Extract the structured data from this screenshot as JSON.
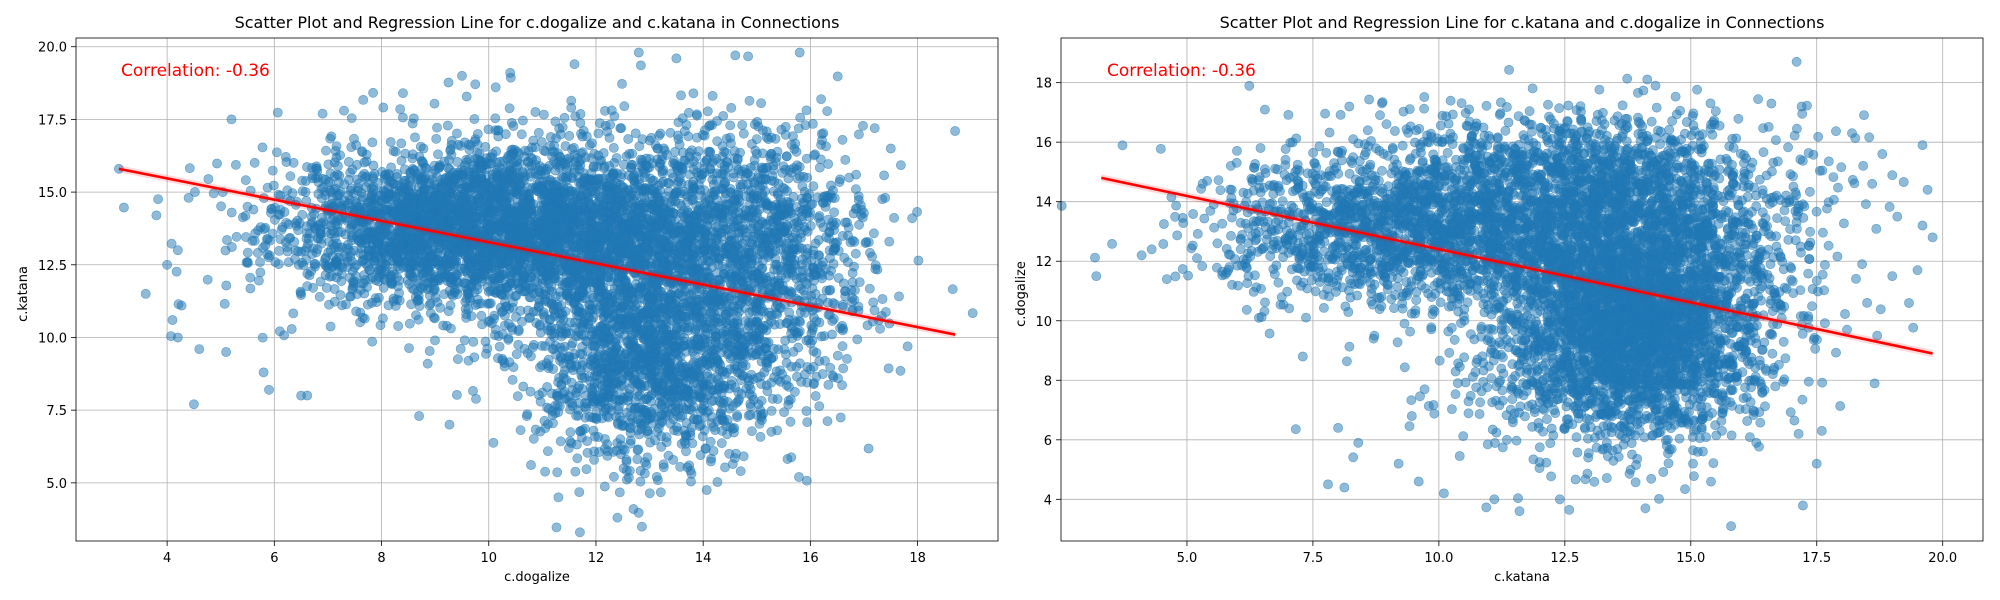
{
  "chart_data": [
    {
      "type": "scatter",
      "title": "Scatter Plot and Regression Line for c.dogalize and c.katana in Connections",
      "xlabel": "c.dogalize",
      "ylabel": "c.katana",
      "annotation": "Correlation: -0.36",
      "xlim": [
        2.3,
        19.5
      ],
      "ylim": [
        3.0,
        20.3
      ],
      "xticks": [
        4,
        6,
        8,
        10,
        12,
        14,
        16,
        18
      ],
      "xtick_labels": [
        "4",
        "6",
        "8",
        "10",
        "12",
        "14",
        "16",
        "18"
      ],
      "yticks": [
        5.0,
        7.5,
        10.0,
        12.5,
        15.0,
        17.5,
        20.0
      ],
      "ytick_labels": [
        "5.0",
        "7.5",
        "10.0",
        "12.5",
        "15.0",
        "17.5",
        "20.0"
      ],
      "grid": true,
      "regression": {
        "x": [
          3.1,
          18.7
        ],
        "y": [
          15.8,
          10.1
        ],
        "color": "#ff0000"
      },
      "point_color": "#1f77b4",
      "clusters": [
        {
          "cx": 9.5,
          "cy": 13.8,
          "sx": 1.7,
          "sy": 1.3,
          "n": 2600
        },
        {
          "cx": 12.8,
          "cy": 13.6,
          "sx": 1.6,
          "sy": 1.6,
          "n": 1800
        },
        {
          "cx": 13.0,
          "cy": 9.3,
          "sx": 1.2,
          "sy": 1.8,
          "n": 1600
        },
        {
          "cx": 15.3,
          "cy": 12.3,
          "sx": 0.9,
          "sy": 2.2,
          "n": 700
        },
        {
          "cx": 11.0,
          "cy": 13.5,
          "sx": 3.0,
          "sy": 2.2,
          "n": 350
        }
      ],
      "outliers": [
        [
          3.1,
          15.8
        ],
        [
          3.6,
          11.5
        ],
        [
          3.8,
          14.2
        ],
        [
          4.0,
          12.5
        ],
        [
          4.1,
          10.6
        ],
        [
          4.2,
          10.0
        ],
        [
          4.5,
          7.7
        ],
        [
          4.6,
          9.6
        ],
        [
          4.2,
          13.0
        ],
        [
          4.4,
          14.8
        ],
        [
          5.2,
          17.5
        ],
        [
          5.5,
          14.5
        ],
        [
          5.1,
          9.5
        ],
        [
          5.8,
          8.8
        ],
        [
          5.9,
          8.2
        ],
        [
          6.5,
          8.0
        ],
        [
          8.7,
          7.3
        ],
        [
          6.9,
          17.7
        ],
        [
          7.3,
          17.8
        ],
        [
          8.4,
          18.4
        ],
        [
          9.5,
          19.0
        ],
        [
          10.4,
          19.1
        ],
        [
          11.6,
          19.4
        ],
        [
          12.8,
          19.8
        ],
        [
          13.5,
          19.6
        ],
        [
          14.6,
          19.7
        ],
        [
          15.8,
          19.8
        ],
        [
          16.2,
          18.2
        ],
        [
          16.6,
          16.8
        ],
        [
          17.2,
          17.2
        ],
        [
          17.5,
          16.5
        ],
        [
          17.9,
          14.1
        ],
        [
          18.7,
          17.1
        ],
        [
          17.3,
          10.3
        ],
        [
          16.6,
          9.7
        ],
        [
          16.0,
          8.9
        ],
        [
          15.6,
          8.3
        ],
        [
          11.7,
          3.3
        ],
        [
          12.4,
          3.8
        ],
        [
          12.7,
          4.1
        ],
        [
          14.7,
          5.4
        ],
        [
          11.3,
          4.5
        ]
      ]
    },
    {
      "type": "scatter",
      "title": "Scatter Plot and Regression Line for c.katana and c.dogalize in Connections",
      "xlabel": "c.katana",
      "ylabel": "c.dogalize",
      "annotation": "Correlation: -0.36",
      "xlim": [
        2.5,
        20.8
      ],
      "ylim": [
        2.6,
        19.5
      ],
      "xticks": [
        5.0,
        7.5,
        10.0,
        12.5,
        15.0,
        17.5,
        20.0
      ],
      "xtick_labels": [
        "5.0",
        "7.5",
        "10.0",
        "12.5",
        "15.0",
        "17.5",
        "20.0"
      ],
      "yticks": [
        4,
        6,
        8,
        10,
        12,
        14,
        16,
        18
      ],
      "ytick_labels": [
        "4",
        "6",
        "8",
        "10",
        "12",
        "14",
        "16",
        "18"
      ],
      "grid": true,
      "regression": {
        "x": [
          3.3,
          19.8
        ],
        "y": [
          14.8,
          8.9
        ],
        "color": "#ff0000"
      },
      "point_color": "#1f77b4",
      "clusters": [
        {
          "cx": 13.8,
          "cy": 9.5,
          "sx": 1.3,
          "sy": 1.7,
          "n": 2600
        },
        {
          "cx": 13.6,
          "cy": 12.8,
          "sx": 1.6,
          "sy": 1.6,
          "n": 1800
        },
        {
          "cx": 9.3,
          "cy": 13.0,
          "sx": 1.8,
          "sy": 1.2,
          "n": 1600
        },
        {
          "cx": 12.3,
          "cy": 15.3,
          "sx": 2.2,
          "sy": 0.9,
          "n": 700
        },
        {
          "cx": 13.5,
          "cy": 11.0,
          "sx": 2.2,
          "sy": 3.0,
          "n": 350
        }
      ],
      "outliers": [
        [
          3.2,
          11.5
        ],
        [
          4.1,
          12.2
        ],
        [
          4.3,
          12.4
        ],
        [
          4.6,
          11.4
        ],
        [
          5.2,
          12.1
        ],
        [
          5.4,
          14.7
        ],
        [
          7.3,
          8.8
        ],
        [
          7.8,
          4.5
        ],
        [
          8.0,
          6.4
        ],
        [
          8.4,
          5.9
        ],
        [
          9.2,
          5.2
        ],
        [
          9.6,
          4.6
        ],
        [
          10.1,
          4.2
        ],
        [
          11.1,
          4.0
        ],
        [
          11.6,
          3.6
        ],
        [
          12.4,
          4.0
        ],
        [
          14.1,
          3.7
        ],
        [
          15.8,
          3.1
        ],
        [
          14.3,
          17.9
        ],
        [
          17.1,
          18.7
        ],
        [
          16.6,
          17.3
        ],
        [
          17.2,
          17.2
        ],
        [
          18.2,
          16.3
        ],
        [
          19.6,
          15.9
        ],
        [
          19.7,
          14.4
        ],
        [
          19.6,
          13.2
        ],
        [
          19.8,
          12.8
        ],
        [
          19.1,
          13.5
        ],
        [
          18.6,
          14.6
        ],
        [
          18.4,
          11.9
        ],
        [
          19.0,
          11.5
        ],
        [
          19.5,
          11.7
        ],
        [
          18.5,
          10.6
        ],
        [
          18.1,
          9.7
        ],
        [
          18.7,
          9.5
        ],
        [
          17.5,
          5.2
        ],
        [
          17.6,
          6.3
        ],
        [
          16.3,
          5.9
        ],
        [
          10.6,
          17.1
        ],
        [
          9.4,
          14.6
        ],
        [
          11.8,
          16.6
        ],
        [
          8.3,
          16.1
        ]
      ]
    }
  ]
}
